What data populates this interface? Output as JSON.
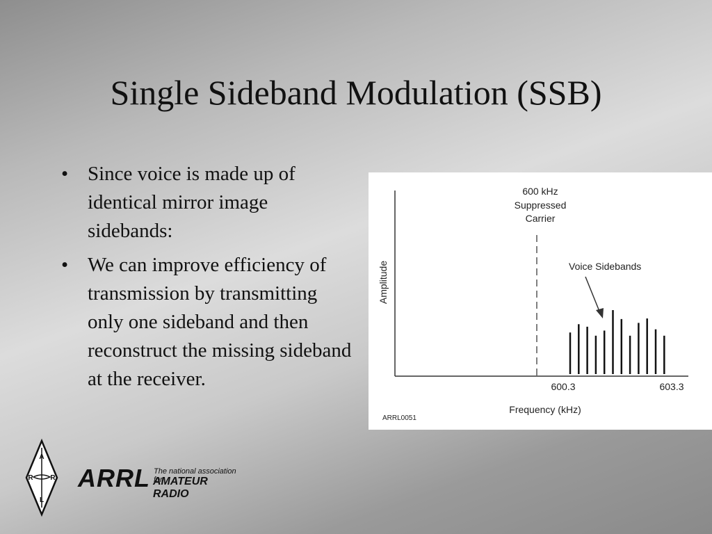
{
  "slide": {
    "title": "Single Sideband Modulation (SSB)",
    "bullets": [
      "Since voice is made up of identical mirror image sidebands:",
      "We can improve efficiency of transmission by transmitting only one sideband and then reconstruct the missing sideband at the receiver."
    ],
    "bullet_char": "•"
  },
  "figure": {
    "carrier_label_1": "600 kHz",
    "carrier_label_2": "Suppressed",
    "carrier_label_3": "Carrier",
    "sidebands_label": "Voice Sidebands",
    "ylabel": "Amplitude",
    "xlabel": "Frequency (kHz)",
    "tick_left": "600.3",
    "tick_right": "603.3",
    "credit": "ARRL0051",
    "spectral_lines": [
      0.65,
      0.78,
      0.74,
      0.6,
      0.68,
      1.0,
      0.86,
      0.6,
      0.8,
      0.87,
      0.7,
      0.6
    ]
  },
  "logo": {
    "word": "ARRL",
    "tagline_1": "The national association for",
    "tagline_2": "AMATEUR RADIO",
    "emblem_letters": [
      "A",
      "R",
      "R",
      "L"
    ]
  }
}
